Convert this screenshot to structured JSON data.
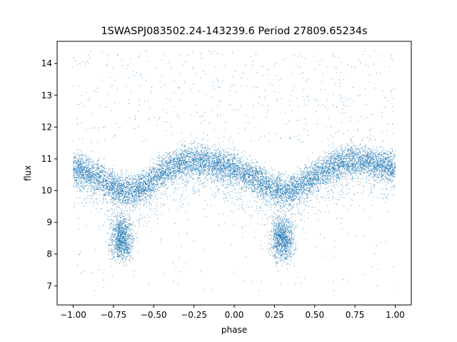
{
  "chart_data": {
    "type": "scatter",
    "title": "1SWASPJ083502.24-143239.6 Period 27809.65234s",
    "xlabel": "phase",
    "ylabel": "flux",
    "xlim": [
      -1.1,
      1.1
    ],
    "ylim": [
      6.4,
      14.7
    ],
    "x_ticks": [
      -1.0,
      -0.75,
      -0.5,
      -0.25,
      0.0,
      0.25,
      0.5,
      0.75,
      1.0
    ],
    "x_tick_labels": [
      "−1.00",
      "−0.75",
      "−0.50",
      "−0.25",
      "0.00",
      "0.25",
      "0.50",
      "0.75",
      "1.00"
    ],
    "y_ticks": [
      7,
      8,
      9,
      10,
      11,
      12,
      13,
      14
    ],
    "y_tick_labels": [
      "7",
      "8",
      "9",
      "10",
      "11",
      "12",
      "13",
      "14"
    ],
    "grid": false,
    "legend": "none",
    "point_color": "#1f77b4",
    "series": [
      {
        "phase": [
          -1.0,
          -0.95,
          -0.9,
          -0.85,
          -0.8,
          -0.75,
          -0.7,
          -0.65,
          -0.6,
          -0.55,
          -0.5,
          -0.45,
          -0.4,
          -0.35,
          -0.3,
          -0.25,
          -0.2,
          -0.15,
          -0.1,
          -0.05,
          0.0,
          0.05,
          0.1,
          0.15,
          0.2,
          0.25,
          0.3,
          0.35,
          0.4,
          0.45,
          0.5,
          0.55,
          0.6,
          0.65,
          0.7,
          0.75,
          0.8,
          0.85,
          0.9,
          0.95,
          1.0
        ],
        "flux_median": [
          10.75,
          10.65,
          10.55,
          10.45,
          10.3,
          10.15,
          10.05,
          10.0,
          10.05,
          10.2,
          10.4,
          10.6,
          10.75,
          10.85,
          10.95,
          11.0,
          10.95,
          10.9,
          10.85,
          10.8,
          10.7,
          10.6,
          10.5,
          10.35,
          10.2,
          10.1,
          10.0,
          10.05,
          10.15,
          10.3,
          10.5,
          10.65,
          10.75,
          10.85,
          10.95,
          11.0,
          10.95,
          10.9,
          10.85,
          10.8,
          10.75
        ]
      }
    ],
    "dip_clusters": [
      {
        "phase_center": -0.7,
        "flux_center": 8.5
      },
      {
        "phase_center": 0.3,
        "flux_center": 8.5
      }
    ]
  }
}
